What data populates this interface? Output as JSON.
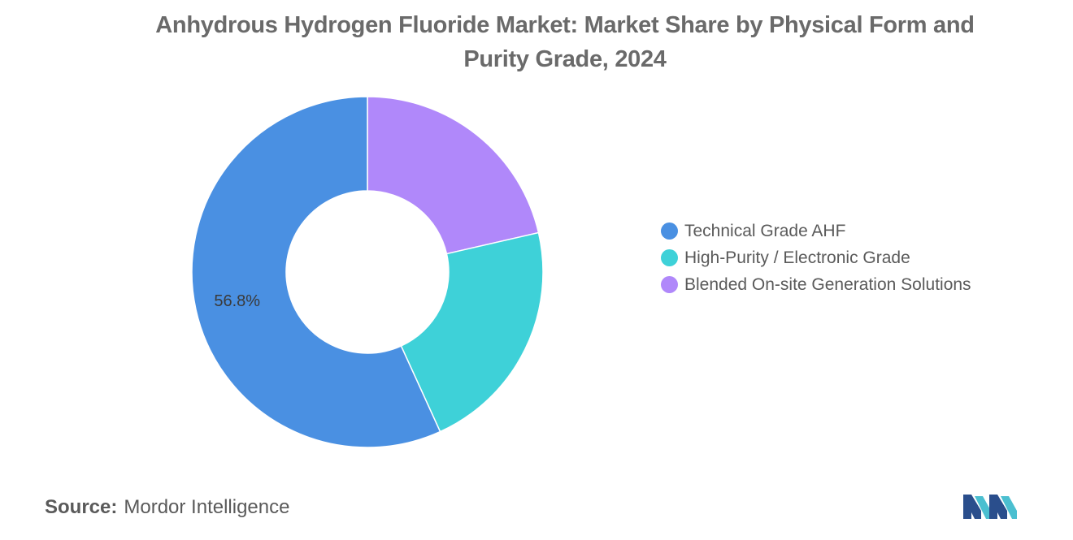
{
  "title": "Anhydrous Hydrogen Fluoride Market: Market Share by Physical Form and Purity Grade, 2024",
  "source": {
    "label": "Source:",
    "name": "Mordor Intelligence"
  },
  "logo": {
    "icon": "mordor-intelligence-logo",
    "colors": [
      "#2a4e8c",
      "#4bbfd0"
    ]
  },
  "chart_data": {
    "type": "pie",
    "variant": "donut",
    "categories": [
      "Technical Grade AHF",
      "High-Purity / Electronic Grade",
      "Blended On-site Generation Solutions"
    ],
    "values": [
      56.8,
      21.8,
      21.4
    ],
    "data_labels": [
      "56.8%",
      "",
      ""
    ],
    "colors": [
      "#4a90e2",
      "#3ed1d8",
      "#b088fa"
    ],
    "legend_position": "right",
    "title": "Anhydrous Hydrogen Fluoride Market: Market Share by Physical Form and Purity Grade, 2024"
  }
}
